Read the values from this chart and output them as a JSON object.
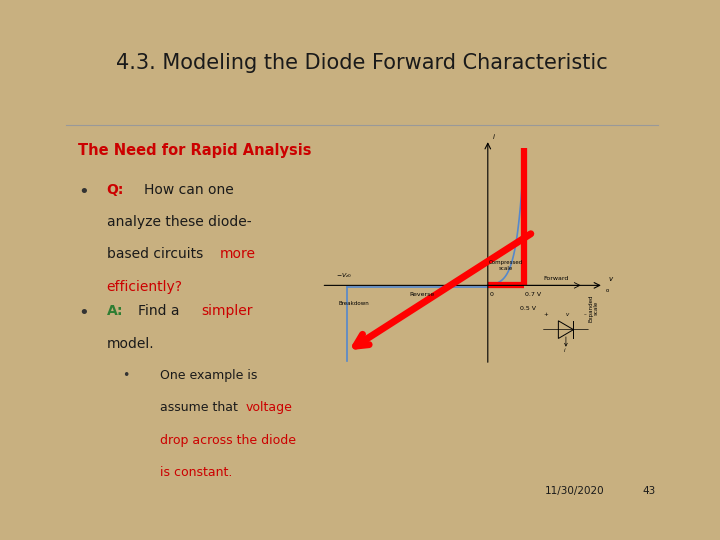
{
  "bg_outer": "#C8B080",
  "bg_slide": "#EFEFEF",
  "border_color": "#6B8E23",
  "title": "4.3. Modeling the Diode Forward Characteristic",
  "title_fontsize": 15,
  "title_color": "#1A1A1A",
  "section_label": "The Need for Rapid Analysis",
  "section_color": "#CC0000",
  "section_fontsize": 10.5,
  "date_text": "11/30/2020",
  "page_num": "43",
  "font_color_dark": "#1A1A1A",
  "bullet_color": "#333333",
  "body_fontsize": 10,
  "sub_fontsize": 9,
  "red": "#CC0000",
  "green": "#2E7D32",
  "blue_curve": "#5588CC"
}
